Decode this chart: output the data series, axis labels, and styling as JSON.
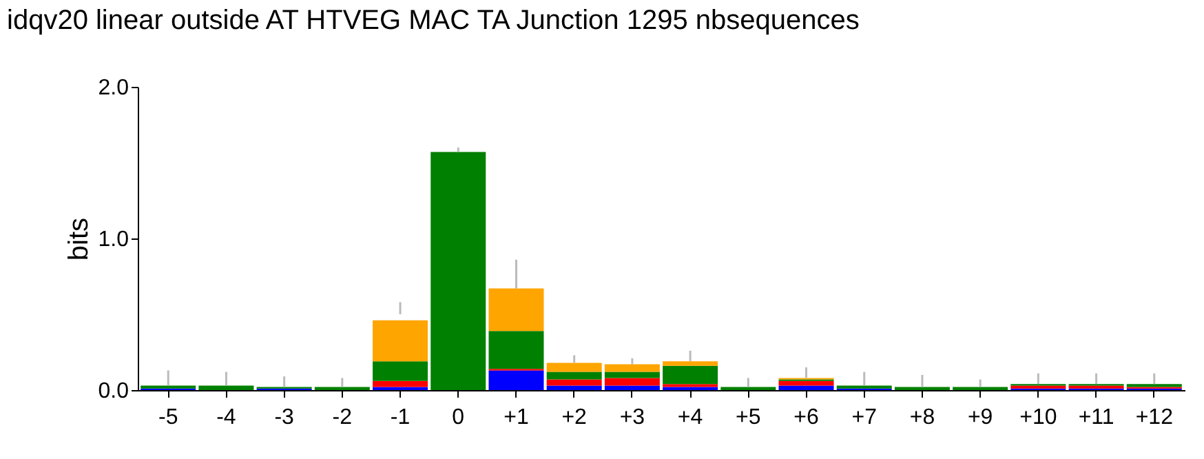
{
  "chart_data": {
    "type": "bar",
    "title": "idqv20 linear outside AT HTVEG MAC TA Junction 1295 nbsequences",
    "ylabel": "bits",
    "stacked": true,
    "categories": [
      "-5",
      "-4",
      "-3",
      "-2",
      "-1",
      "0",
      "+1",
      "+2",
      "+3",
      "+4",
      "+5",
      "+6",
      "+7",
      "+8",
      "+9",
      "+10",
      "+11",
      "+12"
    ],
    "series": [
      {
        "color": "#0000ff",
        "values": [
          0.01,
          0.0,
          0.01,
          0.0,
          0.02,
          0.0,
          0.13,
          0.03,
          0.03,
          0.02,
          0.0,
          0.03,
          0.01,
          0.0,
          0.0,
          0.01,
          0.01,
          0.01
        ]
      },
      {
        "color": "#ff0000",
        "values": [
          0.0,
          0.0,
          0.0,
          0.0,
          0.04,
          0.0,
          0.01,
          0.04,
          0.05,
          0.02,
          0.0,
          0.03,
          0.0,
          0.0,
          0.0,
          0.02,
          0.02,
          0.01
        ]
      },
      {
        "color": "#008000",
        "values": [
          0.02,
          0.03,
          0.01,
          0.02,
          0.13,
          1.57,
          0.25,
          0.05,
          0.04,
          0.12,
          0.02,
          0.01,
          0.02,
          0.02,
          0.02,
          0.01,
          0.01,
          0.02
        ]
      },
      {
        "color": "#ffa500",
        "values": [
          0.0,
          0.0,
          0.0,
          0.0,
          0.27,
          0.0,
          0.28,
          0.06,
          0.05,
          0.03,
          0.0,
          0.01,
          0.0,
          0.0,
          0.0,
          0.0,
          0.0,
          0.0
        ],
        "errors": [
          [
            0.03,
            0.13
          ],
          [
            0.03,
            0.12
          ],
          [
            0.02,
            0.09
          ],
          [
            0.02,
            0.08
          ],
          [
            0.5,
            0.58
          ],
          [
            1.57,
            1.6
          ],
          [
            0.67,
            0.86
          ],
          [
            0.18,
            0.23
          ],
          [
            0.17,
            0.21
          ],
          [
            0.19,
            0.26
          ],
          [
            0.02,
            0.08
          ],
          [
            0.08,
            0.15
          ],
          [
            0.03,
            0.12
          ],
          [
            0.02,
            0.1
          ],
          [
            0.02,
            0.07
          ],
          [
            0.04,
            0.11
          ],
          [
            0.04,
            0.11
          ],
          [
            0.04,
            0.11
          ]
        ]
      }
    ],
    "ylim": [
      0,
      2
    ],
    "yticks": [
      {
        "value": 0,
        "label": "0.0"
      },
      {
        "value": 1,
        "label": "1.0"
      },
      {
        "value": 2,
        "label": "2.0"
      }
    ],
    "grid": false,
    "legend": false
  }
}
